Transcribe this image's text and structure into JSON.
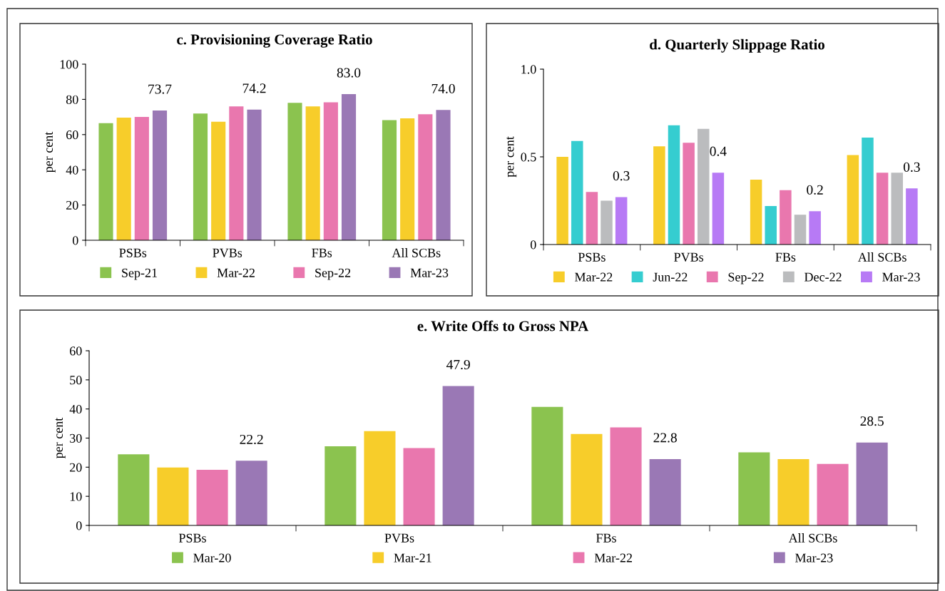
{
  "chart_data": [
    {
      "type": "bar",
      "title": "c. Provisioning Coverage Ratio",
      "ylabel": "per cent",
      "categories": [
        "PSBs",
        "PVBs",
        "FBs",
        "All SCBs"
      ],
      "ylim": [
        0,
        100
      ],
      "yticks": [
        0,
        20,
        40,
        60,
        80,
        100
      ],
      "grid": false,
      "legend": "bottom",
      "series": [
        {
          "name": "Sep-21",
          "color": "#8bc34f",
          "values": [
            66.5,
            72.0,
            78.0,
            68.2
          ]
        },
        {
          "name": "Mar-22",
          "color": "#f7cd2a",
          "values": [
            69.6,
            67.3,
            76.0,
            69.2
          ]
        },
        {
          "name": "Sep-22",
          "color": "#e977ae",
          "values": [
            70.0,
            76.0,
            78.3,
            71.6
          ]
        },
        {
          "name": "Mar-23",
          "color": "#9a78b5",
          "values": [
            73.7,
            74.2,
            83.0,
            74.0
          ],
          "value_labels": [
            "73.7",
            "74.2",
            "83.0",
            "74.0"
          ]
        }
      ]
    },
    {
      "type": "bar",
      "title": "d. Quarterly Slippage Ratio",
      "ylabel": "per cent",
      "categories": [
        "PSBs",
        "PVBs",
        "FBs",
        "All SCBs"
      ],
      "ylim": [
        0,
        1.0
      ],
      "yticks": [
        0,
        0.5,
        {
          "value": 1.0,
          "label": "1.0"
        }
      ],
      "grid": false,
      "legend": "bottom",
      "series": [
        {
          "name": "Mar-22",
          "color": "#f7cd2a",
          "values": [
            0.5,
            0.56,
            0.37,
            0.51
          ]
        },
        {
          "name": "Jun-22",
          "color": "#35cdd0",
          "values": [
            0.59,
            0.68,
            0.22,
            0.61
          ]
        },
        {
          "name": "Sep-22",
          "color": "#e977ae",
          "values": [
            0.3,
            0.58,
            0.31,
            0.41
          ]
        },
        {
          "name": "Dec-22",
          "color": "#bbbcbe",
          "values": [
            0.25,
            0.66,
            0.17,
            0.41
          ]
        },
        {
          "name": "Mar-23",
          "color": "#b77af5",
          "values": [
            0.27,
            0.41,
            0.19,
            0.32
          ],
          "value_labels": [
            "0.3",
            "0.4",
            "0.2",
            "0.3"
          ]
        }
      ]
    },
    {
      "type": "bar",
      "title": "e. Write Offs to Gross NPA",
      "ylabel": "per cent",
      "categories": [
        "PSBs",
        "PVBs",
        "FBs",
        "All SCBs"
      ],
      "ylim": [
        0,
        60
      ],
      "yticks": [
        0,
        10,
        20,
        30,
        40,
        50,
        60
      ],
      "grid": false,
      "legend": "bottom",
      "series": [
        {
          "name": "Mar-20",
          "color": "#8bc34f",
          "values": [
            24.4,
            27.2,
            40.7,
            25.1
          ]
        },
        {
          "name": "Mar-21",
          "color": "#f7cd2a",
          "values": [
            19.9,
            32.4,
            31.4,
            22.8
          ]
        },
        {
          "name": "Mar-22",
          "color": "#e977ae",
          "values": [
            19.1,
            26.6,
            33.7,
            21.1
          ]
        },
        {
          "name": "Mar-23",
          "color": "#9a78b5",
          "values": [
            22.2,
            47.9,
            22.8,
            28.5
          ],
          "value_labels": [
            "22.2",
            "47.9",
            "22.8",
            "28.5"
          ]
        }
      ]
    }
  ]
}
